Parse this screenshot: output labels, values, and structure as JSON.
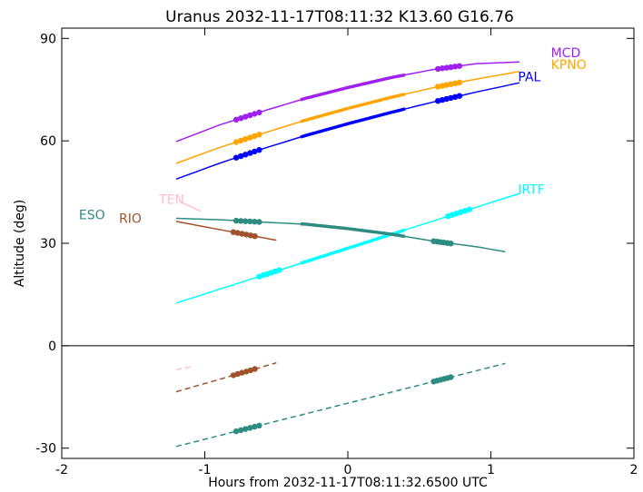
{
  "chart_data": {
    "type": "line",
    "title": "Uranus 2032-11-17T08:11:32  K13.60  G16.76",
    "xlabel": "Hours from 2032-11-17T08:11:32.6500 UTC",
    "ylabel": "Altitude (deg)",
    "xlim": [
      -2.0,
      2.0
    ],
    "ylim": [
      -33,
      93
    ],
    "xticks": [
      -2,
      -1,
      0,
      1,
      2
    ],
    "xtick_labels": [
      "-2",
      "-1",
      "0",
      "1",
      "2"
    ],
    "yticks": [
      -30,
      0,
      30,
      60,
      90
    ],
    "ytick_labels": [
      "-30",
      "0",
      "30",
      "60",
      "90"
    ],
    "zero_line": 0,
    "series": [
      {
        "name": "MCD",
        "color": "#a020f0",
        "label_pos": [
          1.42,
          84.5
        ],
        "points": [
          [
            -1.2,
            59.8
          ],
          [
            -0.9,
            64.6
          ],
          [
            -0.6,
            68.6
          ],
          [
            -0.3,
            72.4
          ],
          [
            0.0,
            75.6
          ],
          [
            0.3,
            78.5
          ],
          [
            0.6,
            80.9
          ],
          [
            0.9,
            82.6
          ],
          [
            1.2,
            83.1
          ]
        ],
        "thick": [
          [
            -0.33,
            0.4
          ]
        ],
        "dots": [
          [
            -0.78,
            -0.62
          ],
          [
            0.63,
            0.78
          ]
        ]
      },
      {
        "name": "KPNO",
        "color": "#ffa500",
        "label_pos": [
          1.42,
          81.0
        ],
        "points": [
          [
            -1.2,
            53.4
          ],
          [
            -0.9,
            58.0
          ],
          [
            -0.6,
            62.1
          ],
          [
            -0.3,
            66.0
          ],
          [
            0.0,
            69.5
          ],
          [
            0.3,
            72.7
          ],
          [
            0.6,
            75.6
          ],
          [
            0.9,
            78.1
          ],
          [
            1.2,
            80.3
          ]
        ],
        "thick": [
          [
            -0.33,
            0.4
          ]
        ],
        "dots": [
          [
            -0.78,
            -0.62
          ],
          [
            0.63,
            0.78
          ]
        ]
      },
      {
        "name": "PAL",
        "color": "#0000ff",
        "label_pos": [
          1.19,
          77.5
        ],
        "points": [
          [
            -1.2,
            48.8
          ],
          [
            -0.9,
            53.4
          ],
          [
            -0.6,
            57.6
          ],
          [
            -0.3,
            61.5
          ],
          [
            0.0,
            65.0
          ],
          [
            0.3,
            68.3
          ],
          [
            0.6,
            71.4
          ],
          [
            0.9,
            74.3
          ],
          [
            1.2,
            77.0
          ]
        ],
        "thick": [
          [
            -0.33,
            0.4
          ]
        ],
        "dots": [
          [
            -0.78,
            -0.62
          ],
          [
            0.63,
            0.78
          ]
        ]
      },
      {
        "name": "IRTF",
        "color": "#00ffff",
        "label_pos": [
          1.19,
          44.5
        ],
        "points": [
          [
            -1.2,
            12.5
          ],
          [
            1.2,
            44.6
          ]
        ],
        "thick": [
          [
            -0.33,
            0.4
          ]
        ],
        "dots": [
          [
            -0.62,
            -0.48
          ],
          [
            0.7,
            0.85
          ]
        ]
      },
      {
        "name": "ESO",
        "color": "#2e8b81",
        "label_pos": [
          -1.88,
          37.0
        ],
        "points": [
          [
            -1.2,
            37.3
          ],
          [
            -0.9,
            36.9
          ],
          [
            -0.6,
            36.2
          ],
          [
            -0.3,
            35.6
          ],
          [
            0.0,
            34.3
          ],
          [
            0.3,
            32.7
          ],
          [
            0.6,
            30.6
          ],
          [
            0.9,
            29.0
          ],
          [
            1.1,
            27.5
          ]
        ],
        "thick": [
          [
            -0.33,
            0.4
          ]
        ],
        "dots": [
          [
            -0.78,
            -0.62
          ],
          [
            0.6,
            0.72
          ]
        ],
        "below": {
          "points": [
            [
              -1.2,
              -29.5
            ],
            [
              1.1,
              -5.2
            ]
          ],
          "dots": [
            [
              -0.78,
              -0.62
            ],
            [
              0.6,
              0.72
            ]
          ]
        }
      },
      {
        "name": "RIO",
        "color": "#a0522d",
        "label_pos": [
          -1.6,
          36.0
        ],
        "points": [
          [
            -1.2,
            36.4
          ],
          [
            -0.5,
            30.9
          ]
        ],
        "thick": [],
        "dots": [
          [
            -0.8,
            -0.65
          ]
        ],
        "below": {
          "points": [
            [
              -1.2,
              -13.5
            ],
            [
              -0.5,
              -5.0
            ]
          ],
          "dots": [
            [
              -0.8,
              -0.65
            ]
          ]
        }
      },
      {
        "name": "TEN",
        "color": "#ffc0cb",
        "label_pos": [
          -1.32,
          41.5
        ],
        "points": [
          [
            -1.18,
            42.3
          ],
          [
            -1.03,
            39.4
          ]
        ],
        "thick": [],
        "dots": [],
        "below": {
          "points": [
            [
              -1.2,
              -7.0
            ],
            [
              -1.1,
              -6.2
            ]
          ],
          "dots": []
        }
      }
    ]
  }
}
